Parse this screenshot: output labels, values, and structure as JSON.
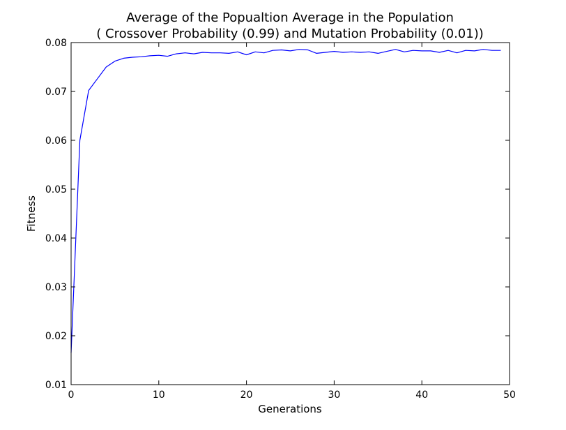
{
  "chart_data": {
    "type": "line",
    "title": "Average of the Popualtion Average in the Population",
    "subtitle": "( Crossover Probability (0.99) and Mutation Probability (0.01))",
    "xlabel": "Generations",
    "ylabel": "Fitness",
    "xlim": [
      0,
      50
    ],
    "ylim": [
      0.01,
      0.08
    ],
    "xticks": [
      0,
      10,
      20,
      30,
      40,
      50
    ],
    "xtick_labels": [
      "0",
      "10",
      "20",
      "30",
      "40",
      "50"
    ],
    "yticks": [
      0.01,
      0.02,
      0.03,
      0.04,
      0.05,
      0.06,
      0.07,
      0.08
    ],
    "ytick_labels": [
      "0.01",
      "0.02",
      "0.03",
      "0.04",
      "0.05",
      "0.06",
      "0.07",
      "0.08"
    ],
    "grid": false,
    "series": [
      {
        "color": "#0000ff",
        "x": [
          0,
          1,
          2,
          3,
          4,
          5,
          6,
          7,
          8,
          9,
          10,
          11,
          12,
          13,
          14,
          15,
          16,
          17,
          18,
          19,
          20,
          21,
          22,
          23,
          24,
          25,
          26,
          27,
          28,
          29,
          30,
          31,
          32,
          33,
          34,
          35,
          36,
          37,
          38,
          39,
          40,
          41,
          42,
          43,
          44,
          45,
          46,
          47,
          48,
          49
        ],
        "y": [
          0.0165,
          0.06,
          0.0702,
          0.0726,
          0.075,
          0.0762,
          0.0768,
          0.077,
          0.0771,
          0.0773,
          0.0774,
          0.0772,
          0.0777,
          0.0779,
          0.0777,
          0.078,
          0.0779,
          0.0779,
          0.0778,
          0.0781,
          0.0775,
          0.0781,
          0.0779,
          0.0784,
          0.0785,
          0.0783,
          0.0786,
          0.0785,
          0.0778,
          0.078,
          0.0782,
          0.078,
          0.0781,
          0.078,
          0.0781,
          0.0778,
          0.0782,
          0.0786,
          0.0781,
          0.0784,
          0.0783,
          0.0783,
          0.078,
          0.0784,
          0.0779,
          0.0784,
          0.0783,
          0.0786,
          0.0784,
          0.0784
        ]
      }
    ]
  }
}
